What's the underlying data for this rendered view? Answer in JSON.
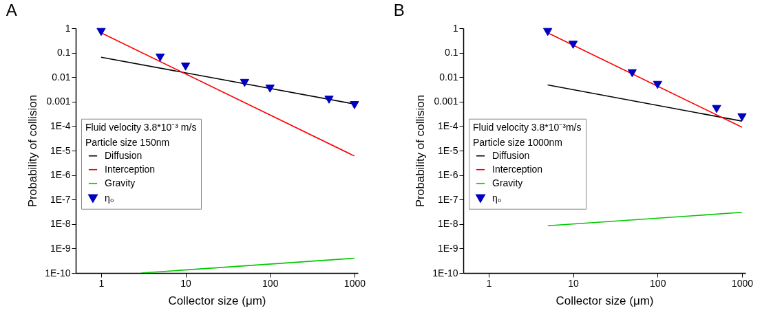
{
  "chart_data": [
    {
      "type": "line",
      "title": "A",
      "xlabel": "Collector size (μm)",
      "ylabel": "Probability of collision",
      "annotations": [
        "Fluid velocity 3.8*10⁻³ m/s",
        "Particle size 150nm"
      ],
      "log": "xy",
      "grid": false,
      "legend": "left",
      "line_style": "solid",
      "xlim": [
        0.5,
        1100
      ],
      "xticks": [
        1,
        10,
        100,
        1000
      ],
      "ylim": [
        1e-10,
        1
      ],
      "yticks": [
        {
          "value": 1,
          "label": "1"
        },
        {
          "value": 0.1,
          "label": "0.1"
        },
        {
          "value": 0.01,
          "label": "0.01"
        },
        {
          "value": 0.001,
          "label": "0.001"
        },
        {
          "value": 0.0001,
          "label": "1E-4"
        },
        {
          "value": 1e-05,
          "label": "1E-5"
        },
        {
          "value": 1e-06,
          "label": "1E-6"
        },
        {
          "value": 1e-07,
          "label": "1E-7"
        },
        {
          "value": 1e-08,
          "label": "1E-8"
        },
        {
          "value": 1e-09,
          "label": "1E-9"
        },
        {
          "value": 1e-10,
          "label": "1E-10"
        }
      ],
      "series": [
        {
          "name": "Diffusion",
          "color": "#000000",
          "x": [
            1,
            1000
          ],
          "values": [
            0.065,
            0.0008
          ]
        },
        {
          "name": "Interception",
          "color": "#ff0000",
          "x": [
            1,
            1000
          ],
          "values": [
            0.65,
            6e-06
          ]
        },
        {
          "name": "Gravity",
          "color": "#00c800",
          "x": [
            3,
            1000
          ],
          "values": [
            1e-10,
            4e-10
          ]
        },
        {
          "name": "η₀",
          "type": "scatter",
          "marker": "triangle",
          "color": "#0000c0",
          "x": [
            1,
            5,
            10,
            50,
            100,
            500,
            1000
          ],
          "values": [
            0.7,
            0.063,
            0.027,
            0.0058,
            0.0034,
            0.0012,
            0.00072
          ]
        }
      ]
    },
    {
      "type": "line",
      "title": "B",
      "xlabel": "Collector size (μm)",
      "ylabel": "Probability of collision",
      "annotations": [
        "Fluid velocity 3.8*10⁻³m/s",
        "Particle size 1000nm"
      ],
      "log": "xy",
      "grid": false,
      "legend": "left",
      "line_style": "solid",
      "xlim": [
        0.5,
        1100
      ],
      "xticks": [
        1,
        10,
        100,
        1000
      ],
      "ylim": [
        1e-10,
        1
      ],
      "yticks": [
        {
          "value": 1,
          "label": "1"
        },
        {
          "value": 0.1,
          "label": "0.1"
        },
        {
          "value": 0.01,
          "label": "0.01"
        },
        {
          "value": 0.001,
          "label": "0.001"
        },
        {
          "value": 0.0001,
          "label": "1E-4"
        },
        {
          "value": 1e-05,
          "label": "1E-5"
        },
        {
          "value": 1e-06,
          "label": "1E-6"
        },
        {
          "value": 1e-07,
          "label": "1E-7"
        },
        {
          "value": 1e-08,
          "label": "1E-8"
        },
        {
          "value": 1e-09,
          "label": "1E-9"
        },
        {
          "value": 1e-10,
          "label": "1E-10"
        }
      ],
      "series": [
        {
          "name": "Diffusion",
          "color": "#000000",
          "x": [
            5,
            1000
          ],
          "values": [
            0.0048,
            0.00016
          ]
        },
        {
          "name": "Interception",
          "color": "#ff0000",
          "x": [
            5,
            1000
          ],
          "values": [
            0.65,
            9e-05
          ]
        },
        {
          "name": "Gravity",
          "color": "#00c800",
          "x": [
            5,
            1000
          ],
          "values": [
            8.5e-09,
            3e-08
          ]
        },
        {
          "name": "η₀",
          "type": "scatter",
          "marker": "triangle",
          "color": "#0000c0",
          "x": [
            5,
            10,
            50,
            100,
            500,
            1000
          ],
          "values": [
            0.7,
            0.21,
            0.0145,
            0.0048,
            0.0005,
            0.00023
          ]
        }
      ]
    }
  ]
}
